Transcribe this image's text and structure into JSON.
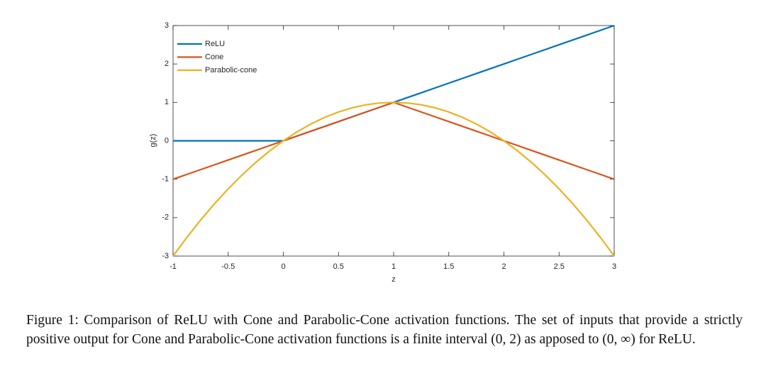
{
  "chart_data": {
    "type": "line",
    "xlabel": "z",
    "ylabel": "g(z)",
    "x": [
      -1,
      -0.875,
      -0.75,
      -0.625,
      -0.5,
      -0.375,
      -0.25,
      -0.125,
      0,
      0.125,
      0.25,
      0.375,
      0.5,
      0.625,
      0.75,
      0.875,
      1,
      1.125,
      1.25,
      1.375,
      1.5,
      1.625,
      1.75,
      1.875,
      2,
      2.125,
      2.25,
      2.375,
      2.5,
      2.625,
      2.75,
      2.875,
      3
    ],
    "series": [
      {
        "name": "ReLU",
        "color": "#0072BD",
        "values": [
          0,
          0,
          0,
          0,
          0,
          0,
          0,
          0,
          0,
          0.125,
          0.25,
          0.375,
          0.5,
          0.625,
          0.75,
          0.875,
          1,
          1.125,
          1.25,
          1.375,
          1.5,
          1.625,
          1.75,
          1.875,
          2,
          2.125,
          2.25,
          2.375,
          2.5,
          2.625,
          2.75,
          2.875,
          3
        ]
      },
      {
        "name": "Cone",
        "color": "#D95319",
        "values": [
          -1,
          -0.875,
          -0.75,
          -0.625,
          -0.5,
          -0.375,
          -0.25,
          -0.125,
          0,
          0.125,
          0.25,
          0.375,
          0.5,
          0.625,
          0.75,
          0.875,
          1,
          0.875,
          0.75,
          0.625,
          0.5,
          0.375,
          0.25,
          0.125,
          0,
          -0.125,
          -0.25,
          -0.375,
          -0.5,
          -0.625,
          -0.75,
          -0.875,
          -1
        ]
      },
      {
        "name": "Parabolic-cone",
        "color": "#EDB120",
        "values": [
          -3,
          -2.515625,
          -2.0625,
          -1.640625,
          -1.25,
          -0.890625,
          -0.5625,
          -0.265625,
          0,
          0.234375,
          0.4375,
          0.609375,
          0.75,
          0.859375,
          0.9375,
          0.984375,
          1,
          0.984375,
          0.9375,
          0.859375,
          0.75,
          0.609375,
          0.4375,
          0.234375,
          0,
          -0.265625,
          -0.5625,
          -0.890625,
          -1.25,
          -1.640625,
          -2.0625,
          -2.515625,
          -3
        ]
      }
    ],
    "xlim": [
      -1,
      3
    ],
    "ylim": [
      -3,
      3
    ],
    "xticks": [
      -1,
      -0.5,
      0,
      0.5,
      1,
      1.5,
      2,
      2.5,
      3
    ],
    "yticks": [
      -3,
      -2,
      -1,
      0,
      1,
      2,
      3
    ],
    "grid": false,
    "legend": "top-left"
  },
  "caption": "Figure 1: Comparison of ReLU with Cone and Parabolic-Cone activation functions. The set of inputs that provide a strictly positive output for Cone and Parabolic-Cone activation functions is a finite interval (0, 2) as apposed to (0, ∞) for ReLU."
}
